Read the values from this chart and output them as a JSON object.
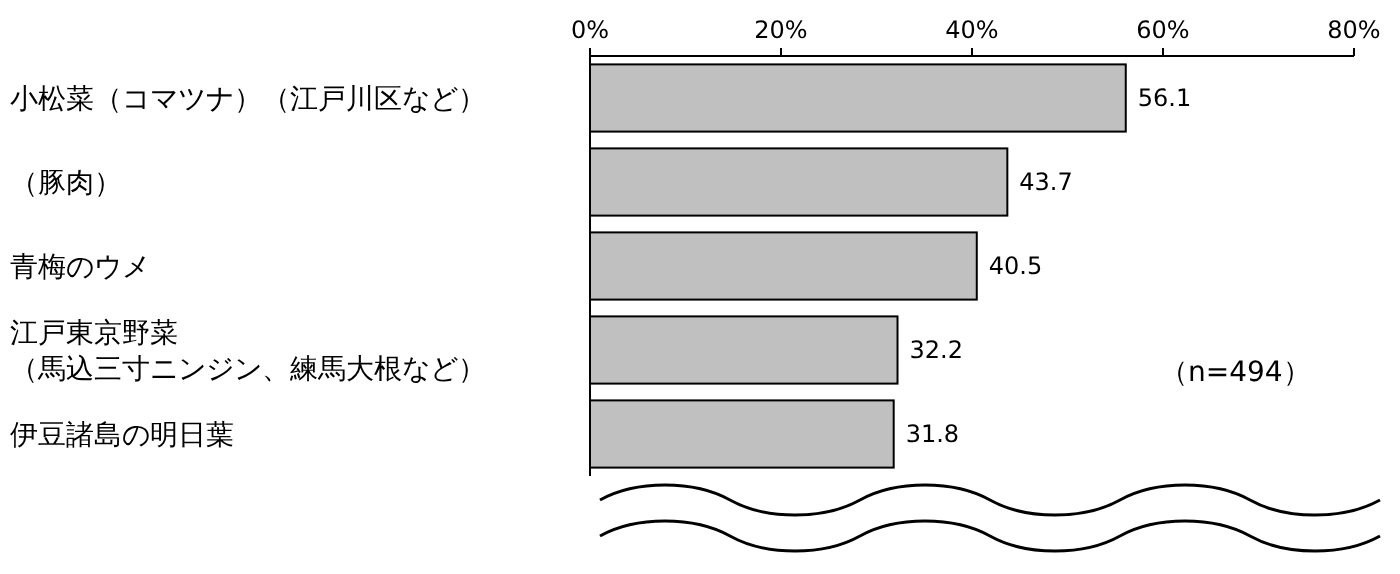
{
  "chart_data": {
    "type": "bar",
    "orientation": "horizontal",
    "categories": [
      "小松菜（コマツナ）（江戸川区など）",
      "（豚肉）",
      "青梅のウメ",
      "江戸東京野菜（馬込三寸ニンジン、練馬大根など）",
      "伊豆諸島の明日葉"
    ],
    "values": [
      56.1,
      43.7,
      40.5,
      32.2,
      31.8
    ],
    "color": "#c0c0c0",
    "data_labels": true,
    "xlim": [
      0,
      80
    ],
    "xticks": [
      {
        "value": 0,
        "label": "0%"
      },
      {
        "value": 20,
        "label": "20%"
      },
      {
        "value": 40,
        "label": "40%"
      },
      {
        "value": 60,
        "label": "60%"
      },
      {
        "value": 80,
        "label": "80%"
      }
    ],
    "annotations": [
      "（n=494）"
    ],
    "grid": false
  }
}
